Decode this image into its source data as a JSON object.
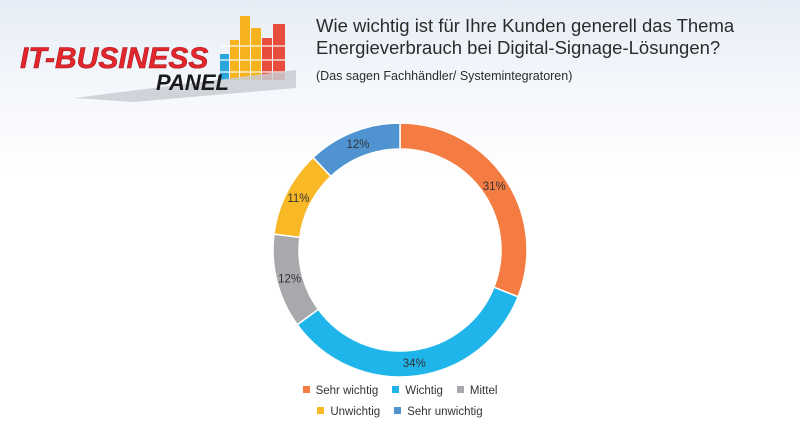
{
  "logo": {
    "line1": "IT-BUSINESS",
    "line2": "PANEL"
  },
  "chart_data": {
    "type": "pie",
    "donut": true,
    "title": "Wie wichtig ist für Ihre Kunden generell das Thema Energieverbrauch bei Digital-Signage-Lösungen?",
    "subtitle": "(Das sagen Fachhändler/ Systemintegratoren)",
    "categories": [
      "Sehr wichtig",
      "Wichtig",
      "Mittel",
      "Unwichtig",
      "Sehr unwichtig"
    ],
    "values": [
      31,
      34,
      12,
      11,
      12
    ],
    "labels": [
      "31%",
      "34%",
      "12%",
      "11%",
      "12%"
    ],
    "colors": [
      "#f47c42",
      "#1fb5ea",
      "#a7a9ac",
      "#f9b826",
      "#4f94d0"
    ],
    "legend": "bottom"
  }
}
